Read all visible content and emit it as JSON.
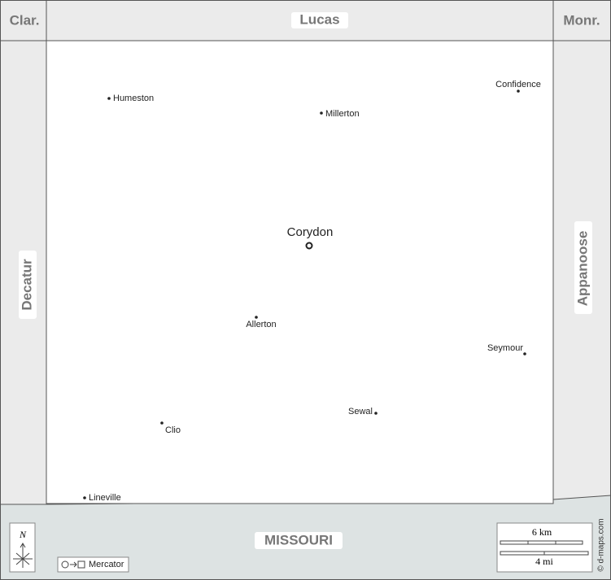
{
  "neighbors": {
    "top_left": "Clar.",
    "top": "Lucas",
    "top_right": "Monr.",
    "left": "Decatur",
    "right": "Appanoose",
    "bottom": "MISSOURI"
  },
  "seat": "Corydon",
  "towns": [
    "Humeston",
    "Millerton",
    "Confidence",
    "Allerton",
    "Seymour",
    "Sewal",
    "Clio",
    "Lineville"
  ],
  "compass": "N",
  "projection": "Mercator",
  "scale": {
    "km": "6 km",
    "mi": "4 mi"
  },
  "credit": "© d-maps.com"
}
